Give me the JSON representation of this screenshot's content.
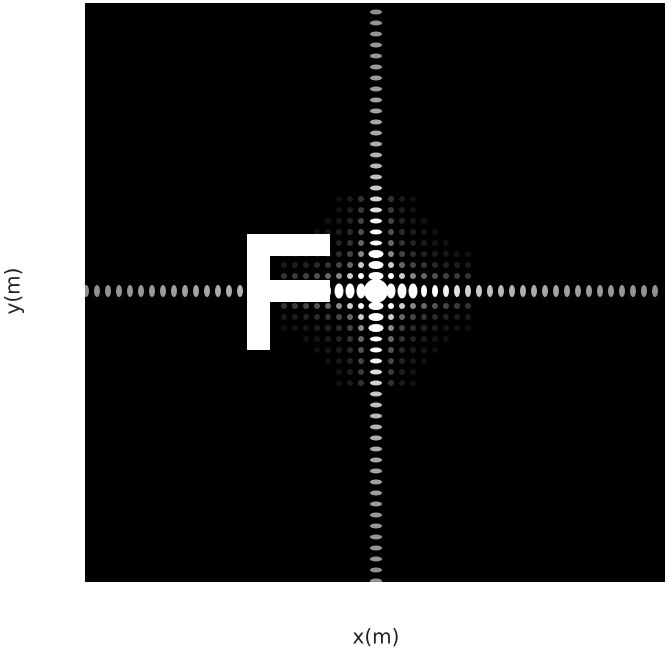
{
  "chart_data": {
    "type": "image",
    "xlabel": "x(m)",
    "ylabel": "y(m)"
  }
}
